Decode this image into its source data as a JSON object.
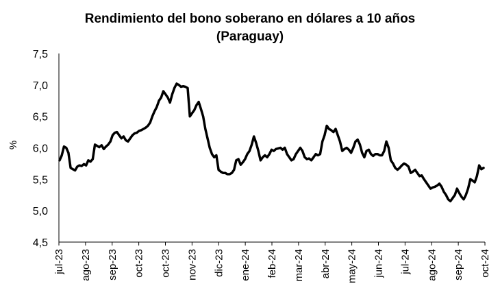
{
  "chart_data": {
    "type": "line",
    "title": "Rendimiento del bono soberano en dólares a 10 años",
    "subtitle": "(Paraguay)",
    "ylabel": "%",
    "xlabel": "",
    "ylim": [
      4.5,
      7.5
    ],
    "yticks": [
      "7,5",
      "7,0",
      "6,5",
      "6,0",
      "5,5",
      "5,0",
      "4,5"
    ],
    "ytick_values": [
      7.5,
      7.0,
      6.5,
      6.0,
      5.5,
      5.0,
      4.5
    ],
    "xticks": [
      "jul-23",
      "ago-23",
      "sep-23",
      "oct-23",
      "oct-23",
      "nov-23",
      "dic-23",
      "ene-24",
      "feb-24",
      "mar-24",
      "abr-24",
      "may-24",
      "jun-24",
      "jul-24",
      "ago-24",
      "sep-24",
      "oct-24"
    ],
    "grid": false,
    "legend": "none",
    "line_color": "#000000",
    "series": [
      {
        "values": [
          5.8,
          5.88,
          6.02,
          6.0,
          5.92,
          5.68,
          5.66,
          5.64,
          5.7,
          5.72,
          5.71,
          5.74,
          5.72,
          5.8,
          5.78,
          5.82,
          6.05,
          6.03,
          6.01,
          6.04,
          5.98,
          6.02,
          6.05,
          6.1,
          6.2,
          6.24,
          6.25,
          6.2,
          6.15,
          6.18,
          6.12,
          6.1,
          6.15,
          6.2,
          6.23,
          6.24,
          6.27,
          6.28,
          6.3,
          6.32,
          6.35,
          6.4,
          6.5,
          6.58,
          6.65,
          6.75,
          6.8,
          6.9,
          6.85,
          6.8,
          6.72,
          6.85,
          6.95,
          7.02,
          7.0,
          6.97,
          6.98,
          6.97,
          6.95,
          6.5,
          6.55,
          6.6,
          6.68,
          6.73,
          6.62,
          6.5,
          6.3,
          6.15,
          6.0,
          5.9,
          5.85,
          5.88,
          5.65,
          5.62,
          5.6,
          5.6,
          5.58,
          5.58,
          5.6,
          5.65,
          5.8,
          5.82,
          5.73,
          5.77,
          5.82,
          5.9,
          5.95,
          6.05,
          6.18,
          6.08,
          5.95,
          5.8,
          5.85,
          5.88,
          5.85,
          5.9,
          5.97,
          5.95,
          5.98,
          5.99,
          6.0,
          5.97,
          6.0,
          5.9,
          5.85,
          5.8,
          5.82,
          5.9,
          5.95,
          6.0,
          5.95,
          5.85,
          5.82,
          5.83,
          5.8,
          5.85,
          5.9,
          5.88,
          5.9,
          6.1,
          6.2,
          6.35,
          6.3,
          6.28,
          6.25,
          6.3,
          6.2,
          6.1,
          5.95,
          5.98,
          6.0,
          5.97,
          5.92,
          6.0,
          6.1,
          6.13,
          6.05,
          5.92,
          5.85,
          5.95,
          5.97,
          5.9,
          5.87,
          5.9,
          5.9,
          5.88,
          5.88,
          5.95,
          6.1,
          6.0,
          5.8,
          5.75,
          5.68,
          5.65,
          5.68,
          5.72,
          5.75,
          5.73,
          5.7,
          5.6,
          5.62,
          5.65,
          5.6,
          5.55,
          5.56,
          5.5,
          5.45,
          5.4,
          5.35,
          5.37,
          5.38,
          5.4,
          5.43,
          5.38,
          5.3,
          5.25,
          5.18,
          5.15,
          5.2,
          5.25,
          5.35,
          5.28,
          5.22,
          5.18,
          5.25,
          5.35,
          5.5,
          5.48,
          5.45,
          5.55,
          5.72,
          5.66,
          5.68
        ]
      }
    ]
  }
}
